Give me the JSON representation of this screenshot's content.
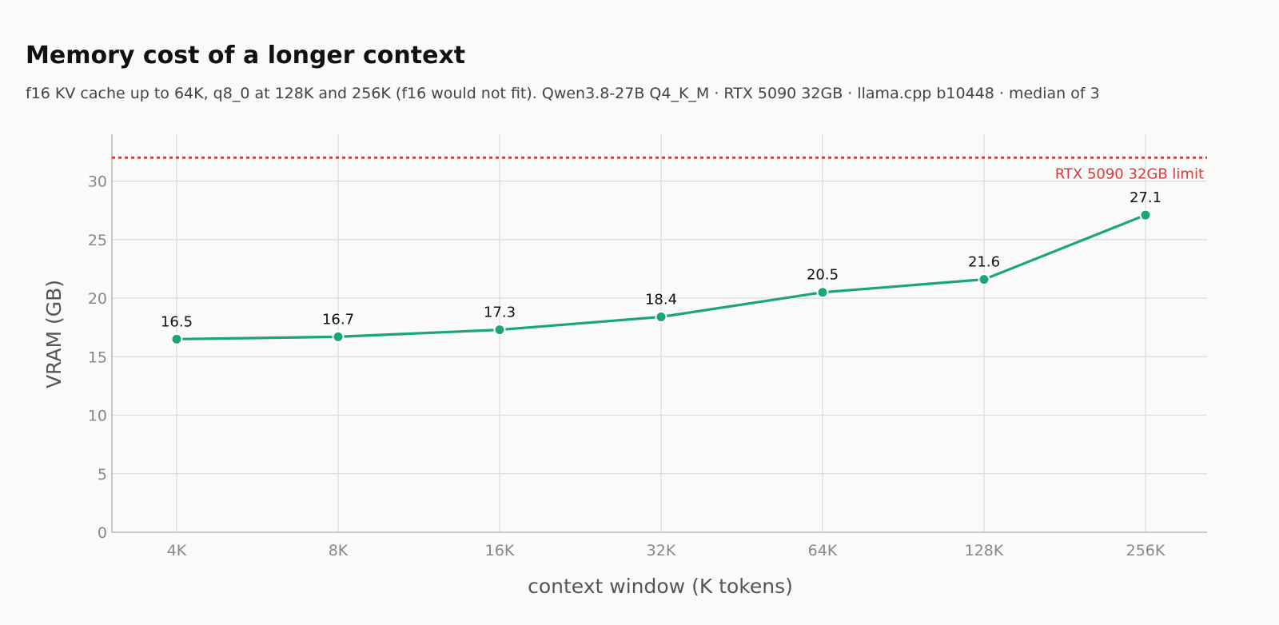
{
  "colors": {
    "series": "#1aa676",
    "limit": "#d93a3f",
    "grid": "#dddddd",
    "axis": "#aaaaaa",
    "background": "#fafaf8"
  },
  "chart_data": {
    "type": "line",
    "title": "Memory cost of a longer context",
    "subtitle": "f16 KV cache up to 64K, q8_0 at 128K and 256K (f16 would not fit). Qwen3.8-27B Q4_K_M · RTX 5090 32GB · llama.cpp b10448 · median of 3",
    "xlabel": "context window (K tokens)",
    "ylabel": "VRAM (GB)",
    "categories": [
      "4K",
      "8K",
      "16K",
      "32K",
      "64K",
      "128K",
      "256K"
    ],
    "series": [
      {
        "values": [
          16.5,
          16.7,
          17.3,
          18.4,
          20.5,
          21.6,
          27.1
        ]
      }
    ],
    "ylim": [
      0,
      34
    ],
    "yticks": [
      0,
      5,
      10,
      15,
      20,
      25,
      30
    ],
    "grid": true,
    "reference_line": {
      "value": 32,
      "label": "RTX 5090 32GB limit",
      "style": "dotted"
    }
  }
}
